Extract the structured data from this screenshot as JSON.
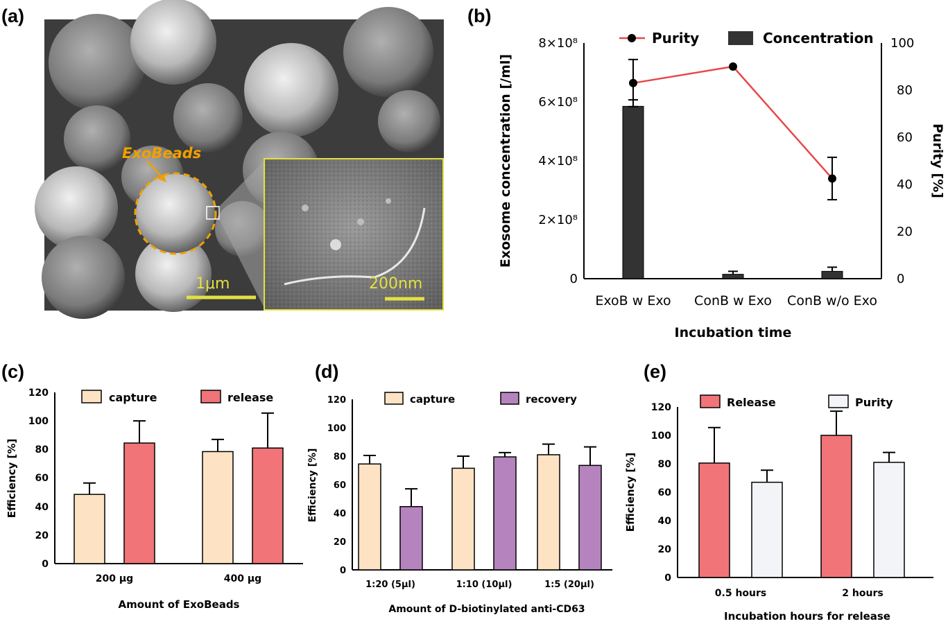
{
  "panel_a": {
    "label": "(a)",
    "annotation": "ExoBeads",
    "scale_main": "1μm",
    "scale_inset": "200nm"
  },
  "chart_data": [
    {
      "id": "b",
      "panel_label": "(b)",
      "type": "bar",
      "categories": [
        "ExoB w Exo",
        "ConB w Exo",
        "ConB w/o Exo"
      ],
      "xlabel": "Incubation time",
      "ylabel": "Exosome concentration [/ml]",
      "ylabel_right": "Purity [%]",
      "ylim": [
        0,
        800000000.0
      ],
      "ylim_right": [
        0,
        100
      ],
      "yticks": [
        "0",
        "2×10⁸",
        "4×10⁸",
        "6×10⁸",
        "8×10⁸"
      ],
      "yticks_right": [
        "0",
        "20",
        "40",
        "60",
        "80",
        "100"
      ],
      "legend": [
        "Purity",
        "Concentration"
      ],
      "legend_position": "top",
      "series": [
        {
          "name": "Concentration",
          "kind": "bar",
          "color": "#333333",
          "values": [
            585000000.0,
            15000000.0,
            25000000.0
          ],
          "errors": [
            22000000.0,
            10000000.0,
            14000000.0
          ]
        },
        {
          "name": "Purity",
          "kind": "line",
          "color": "#e8474a",
          "values": [
            83,
            90,
            42.5
          ],
          "errors": [
            10,
            0,
            9
          ]
        }
      ]
    },
    {
      "id": "c",
      "panel_label": "(c)",
      "type": "bar",
      "categories": [
        "200 μg",
        "400 μg"
      ],
      "xlabel": "Amount of ExoBeads",
      "ylabel": "Efficiency [%]",
      "ylim": [
        0,
        120
      ],
      "yticks": [
        "0",
        "20",
        "40",
        "60",
        "80",
        "100",
        "120"
      ],
      "legend_position": "top",
      "series": [
        {
          "name": "capture",
          "color": "#fde3c4",
          "values": [
            48.5,
            78.5
          ],
          "errors": [
            8,
            8.5
          ]
        },
        {
          "name": "release",
          "color": "#f07478",
          "values": [
            84.5,
            81
          ],
          "errors": [
            15.5,
            24.5
          ]
        }
      ]
    },
    {
      "id": "d",
      "panel_label": "(d)",
      "type": "bar",
      "categories": [
        "1:20 (5μl)",
        "1:10 (10μl)",
        "1:5 (20μl)"
      ],
      "xlabel": "Amount of D-biotinylated anti-CD63",
      "ylabel": "Efficiency [%]",
      "ylim": [
        0,
        120
      ],
      "yticks": [
        "0",
        "20",
        "40",
        "60",
        "80",
        "100",
        "120"
      ],
      "legend_position": "top",
      "series": [
        {
          "name": "capture",
          "color": "#fde3c4",
          "values": [
            74.5,
            71.5,
            81
          ],
          "errors": [
            6,
            8.5,
            7.5
          ]
        },
        {
          "name": "recovery",
          "color": "#b584bf",
          "values": [
            44.5,
            79.5,
            73.5
          ],
          "errors": [
            12.5,
            3,
            13
          ]
        }
      ]
    },
    {
      "id": "e",
      "panel_label": "(e)",
      "type": "bar",
      "categories": [
        "0.5 hours",
        "2 hours"
      ],
      "xlabel": "Incubation hours for release",
      "ylabel": "Efficiency [%]",
      "ylim": [
        0,
        120
      ],
      "yticks": [
        "0",
        "20",
        "40",
        "60",
        "80",
        "100",
        "120"
      ],
      "legend_position": "top",
      "series": [
        {
          "name": "Release",
          "color": "#f07478",
          "values": [
            80.5,
            100
          ],
          "errors": [
            25,
            17
          ]
        },
        {
          "name": "Purity",
          "color": "#f2f4f7",
          "values": [
            67,
            81
          ],
          "errors": [
            8.5,
            7
          ]
        }
      ]
    }
  ]
}
